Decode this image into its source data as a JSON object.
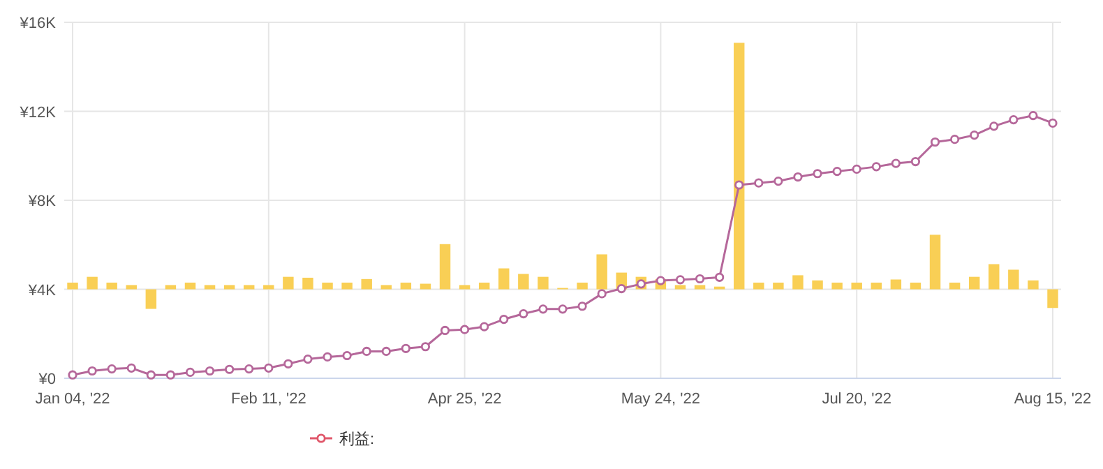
{
  "chart_data": {
    "type": "bar",
    "categories": [
      "Jan 04, '22",
      null,
      null,
      null,
      null,
      null,
      null,
      null,
      null,
      null,
      "Feb 11, '22",
      null,
      null,
      null,
      null,
      null,
      null,
      null,
      null,
      null,
      "Apr 25, '22",
      null,
      null,
      null,
      null,
      null,
      null,
      null,
      null,
      null,
      "May 24, '22",
      null,
      null,
      null,
      null,
      null,
      null,
      null,
      null,
      null,
      "Jul 20, '22",
      null,
      null,
      null,
      null,
      null,
      null,
      null,
      null,
      null,
      "Aug 15, '22"
    ],
    "series": [
      {
        "name": "利益:",
        "type": "line",
        "color": "#e0576a",
        "values": [
          null,
          null,
          null,
          null,
          null,
          null,
          null,
          null,
          null,
          null,
          null,
          null,
          null,
          null,
          null,
          null,
          null,
          null,
          null,
          null,
          null,
          null,
          null,
          null,
          null,
          null,
          null,
          null,
          null,
          null,
          null,
          null,
          null,
          null,
          null,
          null,
          null,
          null,
          null,
          null,
          null,
          null,
          null,
          null,
          null,
          null,
          null,
          null,
          null,
          null,
          null
        ]
      },
      {
        "color": "#f9cf55",
        "base": [
          4000,
          4000,
          4000,
          4000,
          4000,
          4000,
          4000,
          4000,
          4000,
          4000,
          4000,
          4000,
          4000,
          4000,
          4000,
          4000,
          4000,
          4000,
          4000,
          4000,
          4000,
          4000,
          4000,
          4000,
          4000,
          4000,
          4000,
          4000,
          4000,
          4000,
          4000,
          4000,
          4000,
          4000,
          4000,
          4000,
          4000,
          4000,
          4000,
          4000,
          4000,
          4000,
          4000,
          4000,
          4000,
          4000,
          4000,
          4000,
          4000,
          4000,
          4000
        ],
        "values": [
          300,
          560,
          300,
          190,
          -880,
          190,
          300,
          190,
          190,
          190,
          190,
          560,
          520,
          300,
          300,
          460,
          190,
          300,
          250,
          2030,
          190,
          300,
          940,
          690,
          560,
          60,
          300,
          1570,
          750,
          560,
          460,
          190,
          190,
          120,
          11080,
          300,
          300,
          630,
          400,
          300,
          300,
          300,
          440,
          300,
          2450,
          300,
          560,
          1130,
          880,
          400,
          -840
        ]
      },
      {
        "type": "line",
        "color": "#b5679a",
        "values": [
          150,
          330,
          420,
          460,
          150,
          150,
          270,
          330,
          400,
          420,
          460,
          650,
          860,
          960,
          1020,
          1210,
          1210,
          1340,
          1420,
          2150,
          2190,
          2320,
          2650,
          2900,
          3110,
          3110,
          3240,
          3800,
          4030,
          4240,
          4390,
          4430,
          4470,
          4540,
          8690,
          8780,
          8860,
          9050,
          9200,
          9300,
          9400,
          9510,
          9660,
          9740,
          10620,
          10740,
          10930,
          11330,
          11620,
          11810,
          11470
        ]
      }
    ],
    "ylim": [
      0,
      16000
    ],
    "yticks": [
      {
        "value": 0,
        "label": "¥0"
      },
      {
        "value": 4000,
        "label": "¥4K"
      },
      {
        "value": 8000,
        "label": "¥8K"
      },
      {
        "value": 12000,
        "label": "¥12K"
      },
      {
        "value": 16000,
        "label": "¥16K"
      }
    ],
    "grid": true,
    "marker": "circle",
    "legend": "bottom"
  }
}
